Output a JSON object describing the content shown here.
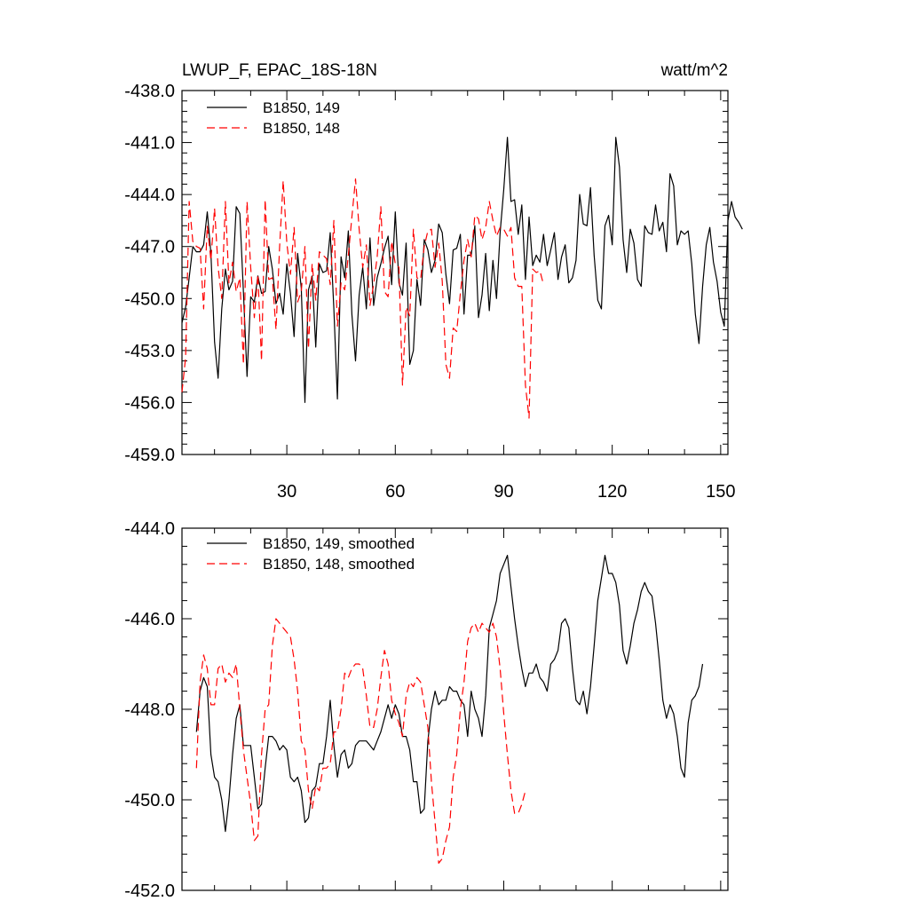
{
  "chart_data": [
    {
      "type": "line",
      "title": "LWUP_F, EPAC_18S-18N",
      "units": "watt/m^2",
      "xlim": [
        1,
        152
      ],
      "ylim": [
        -459.0,
        -438.0
      ],
      "yticks": [
        "-438.0",
        "-441.0",
        "-444.0",
        "-447.0",
        "-450.0",
        "-453.0",
        "-456.0",
        "-459.0"
      ],
      "yticks_values": [
        -438,
        -441,
        -444,
        -447,
        -450,
        -453,
        -456,
        -459
      ],
      "xticks": [
        "30",
        "60",
        "90",
        "120",
        "150"
      ],
      "xticks_values": [
        30,
        60,
        90,
        120,
        150
      ],
      "legend": "top-left",
      "series": [
        {
          "name": "B1850, 149",
          "color": "#000000",
          "dash": "solid",
          "x_start": 1,
          "values": [
            -451.4,
            -450.5,
            -448.8,
            -447.0,
            -447.3,
            -447.3,
            -446.9,
            -445.0,
            -447.4,
            -452.5,
            -454.6,
            -450.6,
            -448.3,
            -449.5,
            -449.0,
            -444.7,
            -445.1,
            -449.6,
            -454.5,
            -449.9,
            -450.2,
            -448.7,
            -449.7,
            -449.6,
            -447.0,
            -448.3,
            -450.3,
            -449.7,
            -450.9,
            -448.0,
            -449.7,
            -452.2,
            -447.4,
            -449.4,
            -456.0,
            -449.5,
            -448.7,
            -452.8,
            -448.0,
            -448.5,
            -448.4,
            -446.2,
            -450.6,
            -455.8,
            -447.6,
            -448.8,
            -446.1,
            -450.9,
            -453.6,
            -449.8,
            -448.2,
            -450.6,
            -446.5,
            -450.4,
            -448.8,
            -448.0,
            -447.1,
            -446.4,
            -449.2,
            -445.0,
            -449.1,
            -449.8,
            -446.8,
            -453.8,
            -453.0,
            -448.9,
            -450.4,
            -446.6,
            -447.2,
            -448.5,
            -447.8,
            -445.7,
            -446.2,
            -448.6,
            -450.3,
            -447.2,
            -447.1,
            -446.3,
            -450.9,
            -447.5,
            -447.5,
            -445.8,
            -451.1,
            -449.8,
            -447.4,
            -450.7,
            -447.8,
            -450.0,
            -446.2,
            -443.7,
            -440.7,
            -444.4,
            -444.3,
            -446.3,
            -444.6,
            -448.9,
            -445.3,
            -448.1,
            -447.5,
            -447.9,
            -446.3,
            -448.1,
            -447.2,
            -446.2,
            -448.9,
            -447.6,
            -446.9,
            -449.1,
            -448.8,
            -447.8,
            -444.0,
            -445.7,
            -445.8,
            -443.6,
            -447.5,
            -450.1,
            -450.6,
            -445.8,
            -445.2,
            -446.9,
            -440.7,
            -442.4,
            -446.6,
            -448.5,
            -446.0,
            -446.8,
            -448.9,
            -449.3,
            -445.8,
            -446.2,
            -446.3,
            -444.6,
            -446.1,
            -445.6,
            -447.3,
            -442.8,
            -443.5,
            -446.9,
            -446.1,
            -446.3,
            -446.1,
            -448.0,
            -450.9,
            -452.6,
            -449.3,
            -446.9,
            -445.9,
            -447.9,
            -449.0,
            -450.8,
            -451.6,
            -445.5,
            -444.4,
            -445.3,
            -445.6,
            -446.0
          ]
        },
        {
          "name": "B1850, 148",
          "color": "#ff0000",
          "dash": "dashed",
          "x_start": 1,
          "values": [
            -455.4,
            -453.4,
            -444.4,
            -446.7,
            -447.0,
            -447.1,
            -450.6,
            -445.8,
            -447.8,
            -444.8,
            -448.2,
            -450.0,
            -444.4,
            -449.1,
            -447.9,
            -449.6,
            -448.8,
            -453.8,
            -444.4,
            -448.2,
            -451.1,
            -448.6,
            -453.6,
            -444.3,
            -448.9,
            -448.8,
            -451.8,
            -447.0,
            -443.2,
            -446.8,
            -448.6,
            -445.9,
            -450.2,
            -449.6,
            -447.0,
            -452.9,
            -448.0,
            -450.1,
            -447.3,
            -447.5,
            -447.7,
            -449.2,
            -445.5,
            -451.6,
            -449.1,
            -449.5,
            -447.5,
            -445.3,
            -443.1,
            -446.0,
            -448.2,
            -446.9,
            -450.4,
            -449.2,
            -447.6,
            -444.7,
            -449.6,
            -449.9,
            -446.7,
            -448.0,
            -448.2,
            -455.0,
            -450.5,
            -451.0,
            -446.0,
            -448.8,
            -448.9,
            -447.0,
            -446.1,
            -446.0,
            -448.2,
            -446.8,
            -449.0,
            -453.8,
            -454.6,
            -451.7,
            -451.9,
            -449.7,
            -447.8,
            -446.6,
            -447.6,
            -445.2,
            -445.4,
            -446.6,
            -445.9,
            -444.4,
            -445.5,
            -446.4,
            -445.9,
            -446.0,
            -446.4,
            -445.9,
            -448.8,
            -449.3,
            -449.3,
            -455.0,
            -456.9,
            -448.3,
            -448.5,
            -448.4,
            -449.2
          ]
        }
      ]
    },
    {
      "type": "line",
      "title": "",
      "xlim": [
        1,
        152
      ],
      "ylim": [
        -452.0,
        -444.0
      ],
      "yticks": [
        "-444.0",
        "-446.0",
        "-448.0",
        "-450.0",
        "-452.0"
      ],
      "yticks_values": [
        -444,
        -446,
        -448,
        -450,
        -452
      ],
      "xticks": [],
      "xticks_values": [
        30,
        60,
        90,
        120,
        150
      ],
      "legend": "top-left",
      "series": [
        {
          "name": "B1850, 149, smoothed",
          "color": "#000000",
          "dash": "solid",
          "x_start": 5,
          "values": [
            -448.5,
            -447.6,
            -447.3,
            -447.5,
            -449.0,
            -449.5,
            -449.6,
            -450.0,
            -450.7,
            -450.0,
            -449.0,
            -448.2,
            -447.9,
            -448.8,
            -448.8,
            -448.8,
            -449.5,
            -450.2,
            -450.1,
            -449.3,
            -448.6,
            -448.6,
            -448.7,
            -448.9,
            -448.8,
            -448.9,
            -449.5,
            -449.6,
            -449.5,
            -449.8,
            -450.5,
            -450.4,
            -449.8,
            -449.7,
            -449.2,
            -449.2,
            -448.6,
            -447.8,
            -448.8,
            -449.5,
            -449.0,
            -448.9,
            -449.3,
            -449.2,
            -448.8,
            -448.7,
            -448.7,
            -448.7,
            -448.8,
            -448.9,
            -448.7,
            -448.5,
            -448.2,
            -447.9,
            -448.2,
            -447.9,
            -448.1,
            -448.6,
            -448.6,
            -448.9,
            -449.6,
            -449.6,
            -450.3,
            -450.2,
            -448.7,
            -448.0,
            -447.6,
            -447.9,
            -447.8,
            -447.8,
            -447.5,
            -447.6,
            -447.6,
            -447.8,
            -447.9,
            -448.6,
            -447.6,
            -448.0,
            -448.2,
            -448.6,
            -447.7,
            -446.2,
            -445.9,
            -445.6,
            -445.0,
            -444.8,
            -444.6,
            -445.3,
            -446.0,
            -446.6,
            -447.1,
            -447.5,
            -447.2,
            -447.2,
            -447.0,
            -447.3,
            -447.4,
            -447.6,
            -447.0,
            -446.9,
            -446.7,
            -446.1,
            -446.0,
            -446.2,
            -447.1,
            -447.8,
            -447.9,
            -447.6,
            -448.1,
            -447.5,
            -446.6,
            -445.6,
            -445.1,
            -444.6,
            -445.0,
            -445.0,
            -445.2,
            -445.7,
            -446.7,
            -447.0,
            -446.6,
            -446.1,
            -445.8,
            -445.4,
            -445.2,
            -445.4,
            -445.5,
            -446.1,
            -446.9,
            -447.8,
            -448.2,
            -447.9,
            -448.1,
            -448.6,
            -449.3,
            -449.5,
            -448.3,
            -447.8,
            -447.7,
            -447.5,
            -447.0
          ]
        },
        {
          "name": "B1850, 148, smoothed",
          "color": "#ff0000",
          "dash": "dashed",
          "x_start": 5,
          "values": [
            -449.3,
            -447.4,
            -446.8,
            -447.1,
            -447.9,
            -447.9,
            -447.1,
            -447.0,
            -447.4,
            -447.2,
            -447.3,
            -447.0,
            -448.0,
            -448.9,
            -449.5,
            -450.1,
            -450.9,
            -450.8,
            -449.0,
            -448.0,
            -447.9,
            -446.6,
            -446.0,
            -446.1,
            -446.2,
            -446.3,
            -446.4,
            -446.9,
            -447.6,
            -448.7,
            -448.9,
            -449.8,
            -450.2,
            -449.7,
            -449.8,
            -449.3,
            -449.3,
            -449.2,
            -448.5,
            -448.5,
            -448.0,
            -447.2,
            -447.3,
            -447.1,
            -447.0,
            -447.0,
            -447.1,
            -447.7,
            -448.4,
            -448.4,
            -448.0,
            -447.3,
            -446.7,
            -447.0,
            -447.8,
            -448.1,
            -448.3,
            -448.6,
            -447.7,
            -447.4,
            -447.5,
            -447.3,
            -447.4,
            -447.9,
            -448.4,
            -449.6,
            -450.5,
            -451.4,
            -451.3,
            -450.9,
            -450.6,
            -449.5,
            -449.0,
            -448.0,
            -447.4,
            -446.5,
            -446.2,
            -446.1,
            -446.3,
            -446.1,
            -446.2,
            -446.3,
            -446.1,
            -446.4,
            -447.1,
            -448.1,
            -449.0,
            -449.8,
            -450.3,
            -450.3,
            -450.1,
            -449.8
          ]
        }
      ]
    }
  ]
}
